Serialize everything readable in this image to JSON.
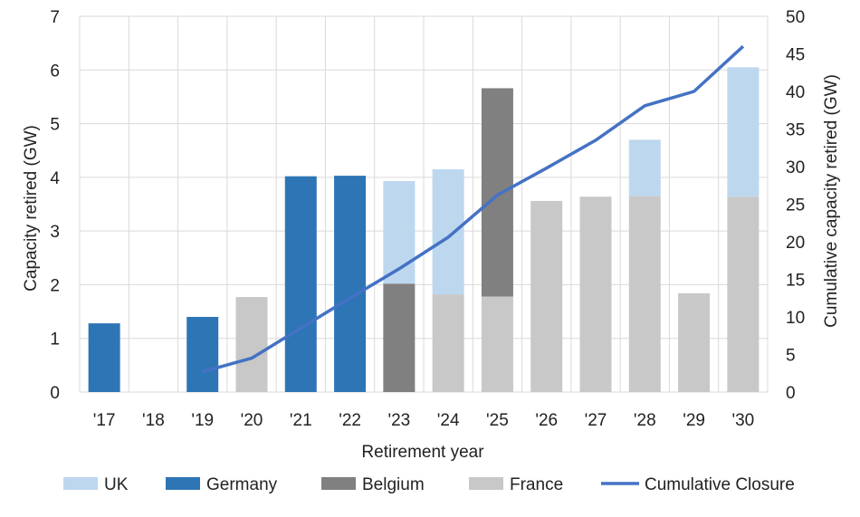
{
  "chart_data": {
    "type": "bar",
    "subtype": "stacked bar with line on secondary axis",
    "categories": [
      "'17",
      "'18",
      "'19",
      "'20",
      "'21",
      "'22",
      "'23",
      "'24",
      "'25",
      "'26",
      "'27",
      "'28",
      "'29",
      "'30"
    ],
    "xlabel": "Retirement year",
    "ylabel": "Capacity retired (GW)",
    "y2label": "Cumulative capacity retired (GW)",
    "ylim": [
      0,
      7
    ],
    "y2lim": [
      0,
      50
    ],
    "yticks": [
      0,
      1,
      2,
      3,
      4,
      5,
      6,
      7
    ],
    "y2ticks": [
      0,
      5,
      10,
      15,
      20,
      25,
      30,
      35,
      40,
      45,
      50
    ],
    "grid": "both",
    "legend_position": "bottom",
    "series": [
      {
        "name": "France",
        "color": "#c8c8c8",
        "values": [
          0,
          0,
          0,
          1.77,
          0,
          0,
          0,
          1.82,
          1.78,
          3.56,
          3.64,
          3.65,
          1.84,
          3.64
        ]
      },
      {
        "name": "Belgium",
        "color": "#808080",
        "values": [
          0,
          0,
          0,
          0,
          0,
          0,
          2.02,
          0,
          3.88,
          0,
          0,
          0,
          0,
          0
        ]
      },
      {
        "name": "Germany",
        "color": "#2e75b6",
        "values": [
          1.28,
          0,
          1.4,
          0,
          4.02,
          4.03,
          0,
          0,
          0,
          0,
          0,
          0,
          0,
          0
        ]
      },
      {
        "name": "UK",
        "color": "#bdd7ee",
        "values": [
          0,
          0,
          0,
          0,
          0,
          0,
          1.91,
          2.33,
          0,
          0,
          0,
          1.05,
          0,
          2.41
        ]
      }
    ],
    "line": {
      "name": "Cumulative Closure",
      "color": "#4472c4",
      "axis": "secondary",
      "x_start_index": 2,
      "values": [
        2.7,
        4.5,
        8.5,
        12.5,
        16.4,
        20.6,
        26.2,
        29.8,
        33.5,
        38.1,
        40.0,
        46.0
      ]
    },
    "legend_order": [
      "UK",
      "Germany",
      "Belgium",
      "France",
      "Cumulative Closure"
    ]
  }
}
